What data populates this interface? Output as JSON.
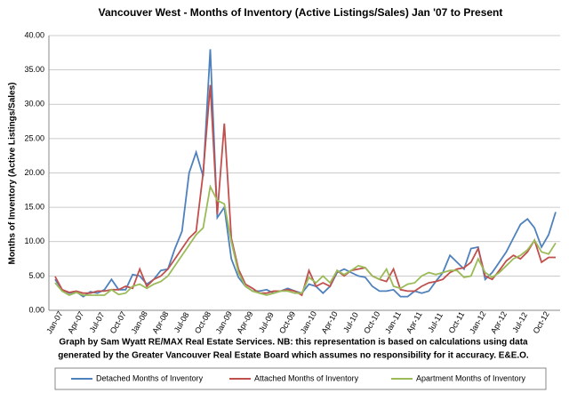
{
  "chart_data": {
    "type": "line",
    "title": "Vancouver West - Months of Inventory (Active Listings/Sales) Jan '07 to Present",
    "y_label": "Months of Inventory (Active Listings/Sales)",
    "footnote": [
      "Graph by Sam Wyatt RE/MAX Real Estate Services.    NB: this representation is based on calculations using data",
      "generated by the Greater Vancouver Real Estate Board which assumes no responsibility for it accuracy. E&E.O."
    ],
    "categories": [
      "Jan-07",
      null,
      null,
      "Apr-07",
      null,
      null,
      "Jul-07",
      null,
      null,
      "Oct-07",
      null,
      null,
      "Jan-08",
      null,
      null,
      "Apr-08",
      null,
      null,
      "Jul-08",
      null,
      null,
      "Oct-08",
      null,
      null,
      "Jan-09",
      null,
      null,
      "Apr-09",
      null,
      null,
      "Jul-09",
      null,
      null,
      "Oct-09",
      null,
      null,
      "Jan-10",
      null,
      null,
      "Apr-10",
      null,
      null,
      "Jul-10",
      null,
      null,
      "Oct-10",
      null,
      null,
      "Jan-11",
      null,
      null,
      "Apr-11",
      null,
      null,
      "Jul-11",
      null,
      null,
      "Oct-11",
      null,
      null,
      "Jan-12",
      null,
      null,
      "Apr-12",
      null,
      null,
      "Jul-12",
      null,
      null,
      "Oct-12",
      null,
      null
    ],
    "series": [
      {
        "name": "Detached Months of Inventory",
        "color": "#4f81bd",
        "values": [
          4.5,
          3.0,
          2.5,
          2.7,
          2.0,
          2.7,
          2.5,
          3.0,
          4.5,
          3.0,
          3.0,
          5.2,
          5.0,
          3.8,
          4.5,
          5.8,
          6.0,
          9.0,
          11.5,
          20,
          23,
          19.5,
          38,
          13.5,
          15,
          7.5,
          4.8,
          3.5,
          2.8,
          2.8,
          3.0,
          2.5,
          2.8,
          3.2,
          2.8,
          2.5,
          3.8,
          3.5,
          2.5,
          3.5,
          5.5,
          6.0,
          5.5,
          5.0,
          4.8,
          3.5,
          2.8,
          2.8,
          3.0,
          2.0,
          2.0,
          2.8,
          2.5,
          2.8,
          4.2,
          5.5,
          8.0,
          7.0,
          6.0,
          9.0,
          9.2,
          4.5,
          5.5,
          7.0,
          8.5,
          10.5,
          12.5,
          13.3,
          12.0,
          9.2,
          11.0,
          14.3
        ]
      },
      {
        "name": "Attached Months of Inventory",
        "color": "#c0504d",
        "values": [
          4.9,
          3.0,
          2.6,
          2.8,
          2.5,
          2.5,
          2.8,
          2.8,
          3.0,
          3.0,
          3.5,
          3.2,
          6.0,
          3.5,
          4.5,
          5.0,
          6.0,
          7.5,
          9.0,
          10.5,
          11.5,
          20,
          32.8,
          14.0,
          27.2,
          10.5,
          6.0,
          3.8,
          3.2,
          2.5,
          2.5,
          2.8,
          2.8,
          3.0,
          2.8,
          2.2,
          5.8,
          3.5,
          4.0,
          3.5,
          5.8,
          5.0,
          5.8,
          6.0,
          6.2,
          5.0,
          4.5,
          4.2,
          6.0,
          3.0,
          2.8,
          2.8,
          3.5,
          4.0,
          4.2,
          4.5,
          5.5,
          6.0,
          6.2,
          7.0,
          9.0,
          5.0,
          4.5,
          5.8,
          7.2,
          8.0,
          7.5,
          8.5,
          10.2,
          7.0,
          7.7,
          7.7
        ]
      },
      {
        "name": "Apartment Months of Inventory",
        "color": "#9bbb59",
        "values": [
          4.0,
          2.8,
          2.2,
          2.6,
          2.2,
          2.2,
          2.2,
          2.2,
          3.0,
          2.3,
          2.5,
          3.5,
          3.8,
          3.2,
          3.8,
          4.2,
          5.0,
          6.5,
          8.0,
          9.5,
          11.0,
          12.0,
          18.0,
          16.0,
          15.5,
          10.0,
          5.5,
          3.5,
          2.8,
          2.5,
          2.2,
          2.5,
          2.8,
          2.8,
          2.5,
          2.5,
          4.8,
          4.0,
          5.0,
          4.0,
          5.8,
          5.2,
          5.8,
          6.5,
          6.2,
          5.0,
          4.5,
          6.0,
          3.5,
          3.2,
          3.8,
          4.0,
          5.0,
          5.5,
          5.2,
          5.5,
          5.8,
          5.8,
          4.8,
          5.0,
          7.5,
          5.5,
          4.8,
          5.5,
          6.5,
          7.5,
          8.0,
          8.8,
          10.2,
          8.5,
          8.2,
          9.8
        ]
      }
    ],
    "ylim": [
      0,
      40
    ],
    "yticks": [
      {
        "value": 0,
        "label": "0.00"
      },
      {
        "value": 5,
        "label": "5.00"
      },
      {
        "value": 10,
        "label": "10.00"
      },
      {
        "value": 15,
        "label": "15.00"
      },
      {
        "value": 20,
        "label": "20.00"
      },
      {
        "value": 25,
        "label": "25.00"
      },
      {
        "value": 30,
        "label": "30.00"
      },
      {
        "value": 35,
        "label": "35.00"
      },
      {
        "value": 40,
        "label": "40.00"
      }
    ],
    "grid": true,
    "legend": "bottom"
  }
}
